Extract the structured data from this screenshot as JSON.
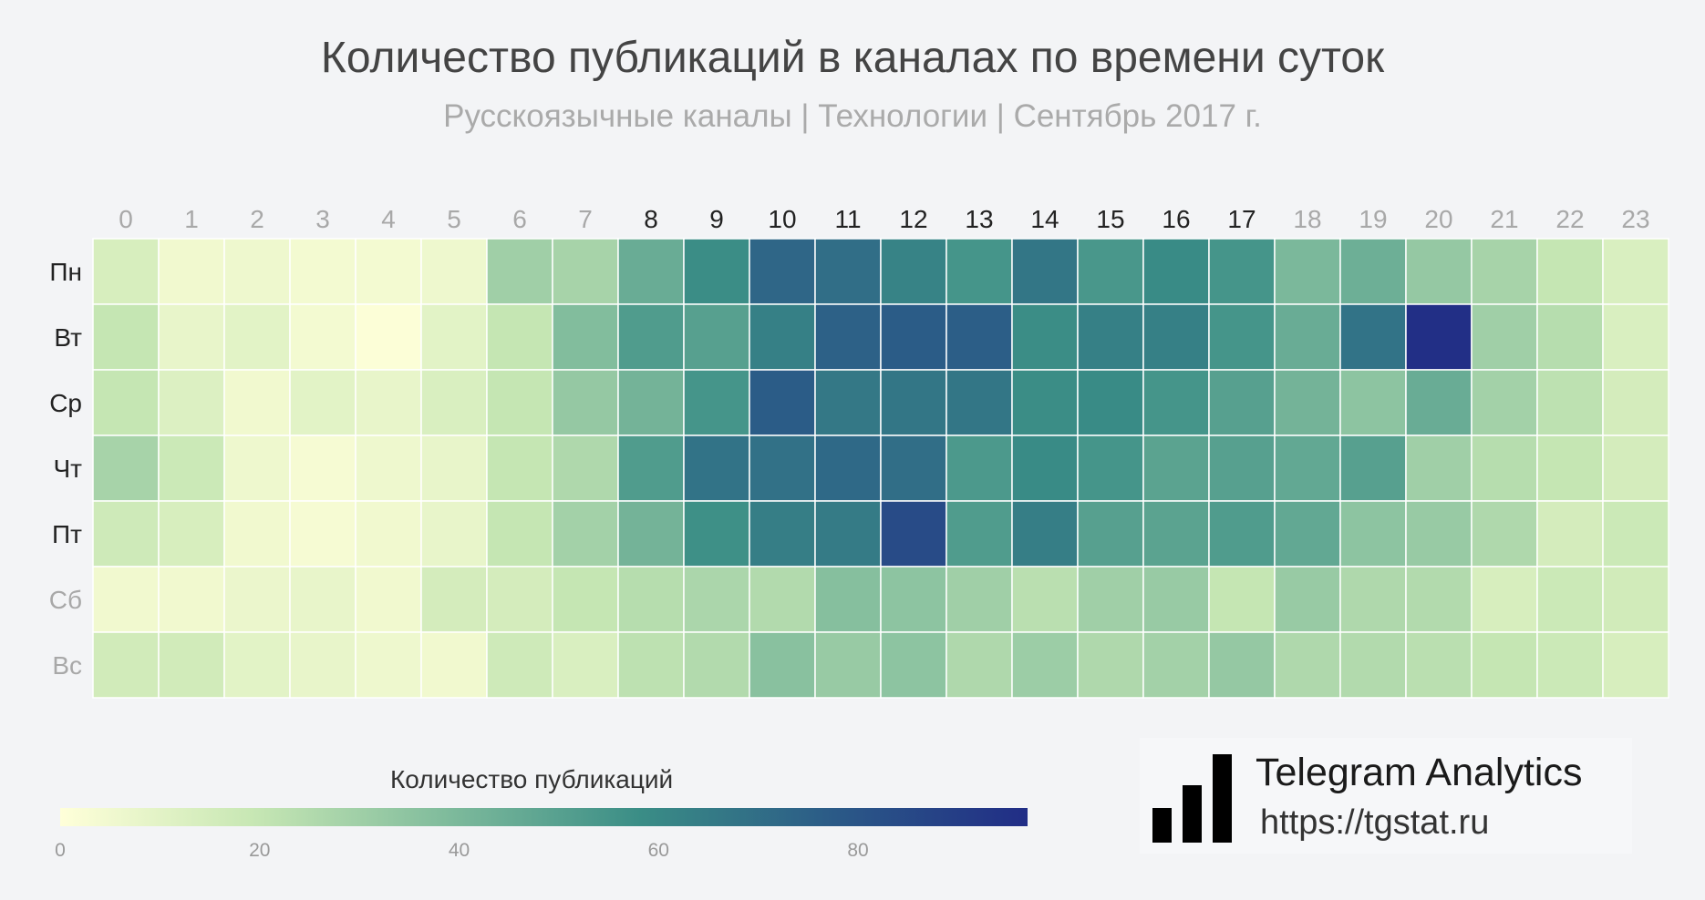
{
  "chart_data": {
    "type": "heatmap",
    "title": "Количество публикаций в каналах по времени суток",
    "subtitle": "Русскоязычные каналы | Технологии | Сентябрь 2017 г.",
    "x": [
      "0",
      "1",
      "2",
      "3",
      "4",
      "5",
      "6",
      "7",
      "8",
      "9",
      "10",
      "11",
      "12",
      "13",
      "14",
      "15",
      "16",
      "17",
      "18",
      "19",
      "20",
      "21",
      "22",
      "23"
    ],
    "y": [
      "Пн",
      "Вт",
      "Ср",
      "Чт",
      "Пт",
      "Сб",
      "Вс"
    ],
    "highlighted_hours": [
      "8",
      "9",
      "10",
      "11",
      "12",
      "13",
      "14",
      "15",
      "16",
      "17"
    ],
    "highlighted_days": [
      "Пн",
      "Вт",
      "Ср",
      "Чт",
      "Пт"
    ],
    "values": [
      [
        14,
        5,
        6,
        4,
        4,
        6,
        30,
        28,
        45,
        58,
        73,
        70,
        62,
        55,
        67,
        54,
        59,
        55,
        40,
        44,
        33,
        28,
        20,
        13
      ],
      [
        20,
        8,
        10,
        4,
        1,
        10,
        20,
        38,
        52,
        50,
        63,
        75,
        77,
        76,
        58,
        63,
        63,
        55,
        45,
        68,
        96,
        30,
        24,
        13
      ],
      [
        20,
        12,
        5,
        10,
        8,
        13,
        20,
        33,
        42,
        55,
        77,
        66,
        67,
        67,
        58,
        59,
        55,
        50,
        42,
        35,
        45,
        29,
        22,
        15
      ],
      [
        28,
        18,
        6,
        3,
        6,
        8,
        20,
        26,
        52,
        68,
        69,
        72,
        70,
        53,
        59,
        55,
        49,
        50,
        47,
        50,
        30,
        24,
        20,
        15
      ],
      [
        17,
        14,
        5,
        3,
        5,
        8,
        20,
        29,
        42,
        57,
        64,
        65,
        84,
        52,
        64,
        50,
        49,
        52,
        47,
        35,
        32,
        26,
        15,
        18
      ],
      [
        5,
        5,
        7,
        8,
        5,
        15,
        15,
        20,
        24,
        27,
        25,
        37,
        35,
        30,
        23,
        30,
        32,
        20,
        32,
        26,
        25,
        14,
        18,
        16
      ],
      [
        16,
        16,
        10,
        8,
        6,
        5,
        17,
        13,
        22,
        25,
        36,
        32,
        35,
        26,
        31,
        26,
        29,
        33,
        26,
        25,
        23,
        20,
        18,
        14
      ]
    ],
    "colorbar": {
      "label": "Количество публикаций",
      "range": [
        0,
        97
      ],
      "ticks": [
        "0",
        "20",
        "40",
        "60",
        "80"
      ],
      "colors": [
        "#ffffd9",
        "#c7e7b4",
        "#7fbb9c",
        "#3a8d86",
        "#2b5a87",
        "#212d86"
      ]
    },
    "label_colors": {
      "highlight": "#222222",
      "normal": "#a8a8a8"
    }
  },
  "brand": {
    "name": "Telegram Analytics",
    "url": "https://tgstat.ru",
    "icon": "signal-bars-icon"
  }
}
